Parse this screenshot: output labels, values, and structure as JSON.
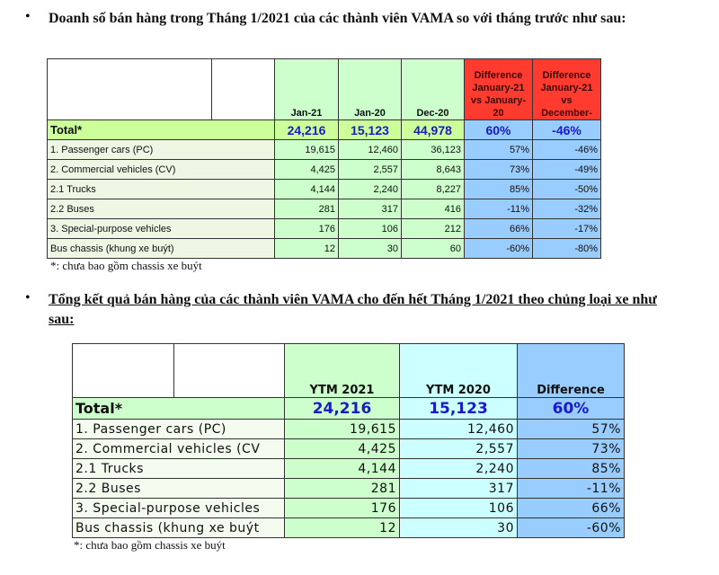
{
  "sections": [
    {
      "heading": "Doanh số bán hàng trong Tháng 1/2021 của các thành viên VAMA so với tháng trước như sau:",
      "table": {
        "columns": [
          "Jan-21",
          "Jan-20",
          "Dec-20",
          "Difference January-21 vs January-20",
          "Difference January-21 vs December-"
        ],
        "total": [
          "Total*",
          "24,216",
          "15,123",
          "44,978",
          "60%",
          "-46%"
        ],
        "rows": [
          [
            "1. Passenger cars (PC)",
            "19,615",
            "12,460",
            "36,123",
            "57%",
            "-46%"
          ],
          [
            "2. Commercial vehicles (CV)",
            "4,425",
            "2,557",
            "8,643",
            "73%",
            "-49%"
          ],
          [
            "2.1 Trucks",
            "4,144",
            "2,240",
            "8,227",
            "85%",
            "-50%"
          ],
          [
            "2.2 Buses",
            "281",
            "317",
            "416",
            "-11%",
            "-32%"
          ],
          [
            "3. Special-purpose vehicles",
            "176",
            "106",
            "212",
            "66%",
            "-17%"
          ],
          [
            "Bus chassis (khung xe buýt)",
            "12",
            "30",
            "60",
            "-60%",
            "-80%"
          ]
        ]
      },
      "footnote": "*: chưa bao gồm chassis xe buýt"
    },
    {
      "heading": "Tổng kết quả bán hàng của các thành viên VAMA cho đến hết Tháng 1/2021 theo chủng loại xe như sau:",
      "table": {
        "columns": [
          "YTM 2021",
          "YTM 2020",
          "Difference"
        ],
        "total": [
          "Total*",
          "24,216",
          "15,123",
          "60%"
        ],
        "rows": [
          [
            "1. Passenger cars (PC)",
            "19,615",
            "12,460",
            "57%"
          ],
          [
            "2. Commercial vehicles (CV",
            "4,425",
            "2,557",
            "73%"
          ],
          [
            "2.1 Trucks",
            "4,144",
            "2,240",
            "85%"
          ],
          [
            "2.2 Buses",
            "281",
            "317",
            "-11%"
          ],
          [
            "3. Special-purpose vehicles",
            "176",
            "106",
            "66%"
          ],
          [
            "Bus chassis (khung xe buýt",
            "12",
            "30",
            "-60%"
          ]
        ]
      },
      "footnote": "*: chưa bao gồm chassis xe buýt"
    }
  ]
}
